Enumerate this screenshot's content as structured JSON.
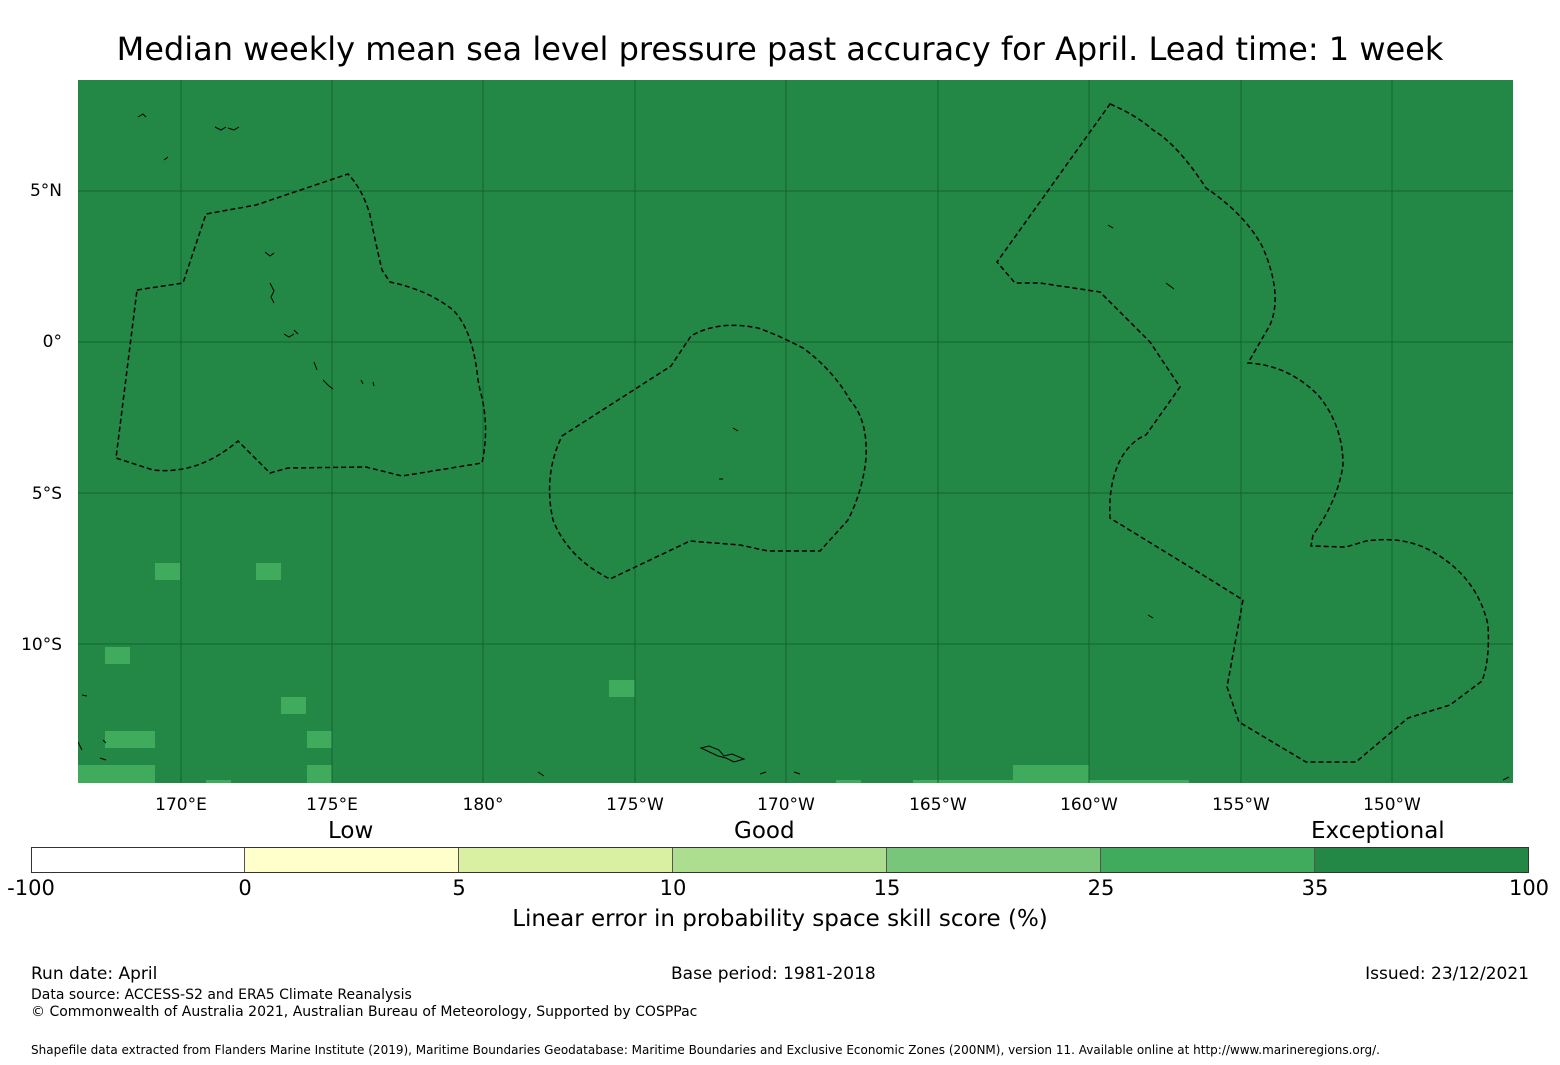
{
  "title": "Median weekly mean sea level pressure past accuracy for April. Lead time: 1 week",
  "map": {
    "lat_labels": [
      "5°N",
      "0°",
      "5°S",
      "10°S"
    ],
    "lon_labels": [
      "170°E",
      "175°E",
      "180°",
      "175°W",
      "170°W",
      "165°W",
      "160°W",
      "155°W",
      "150°W"
    ],
    "background_category": "35 to 100",
    "background_color": "#238845",
    "patch_color": "#41ab5d"
  },
  "colorbar": {
    "categories": [
      "Low",
      "Good",
      "Exceptional"
    ],
    "ticks": [
      "-100",
      "0",
      "5",
      "10",
      "15",
      "25",
      "35",
      "100"
    ],
    "colors": [
      "#ffffff",
      "#ffffcc",
      "#d9f0a3",
      "#addd8e",
      "#78c679",
      "#41ab5d",
      "#238845"
    ],
    "label": "Linear error in probability space skill score (%)"
  },
  "footer": {
    "run_date": "Run date: April",
    "base_period": "Base period: 1981-2018",
    "issued": "Issued: 23/12/2021",
    "data_source": "Data source: ACCESS-S2 and ERA5 Climate Reanalysis",
    "copyright": "© Commonwealth of Australia 2021, Australian Bureau of Meteorology, Supported by COSPPac",
    "shapefile": "Shapefile data extracted from Flanders Marine Institute (2019), Maritime Boundaries Geodatabase: Maritime Boundaries and Exclusive Economic Zones (200NM), version 11. Available online at http://www.marineregions.org/."
  }
}
